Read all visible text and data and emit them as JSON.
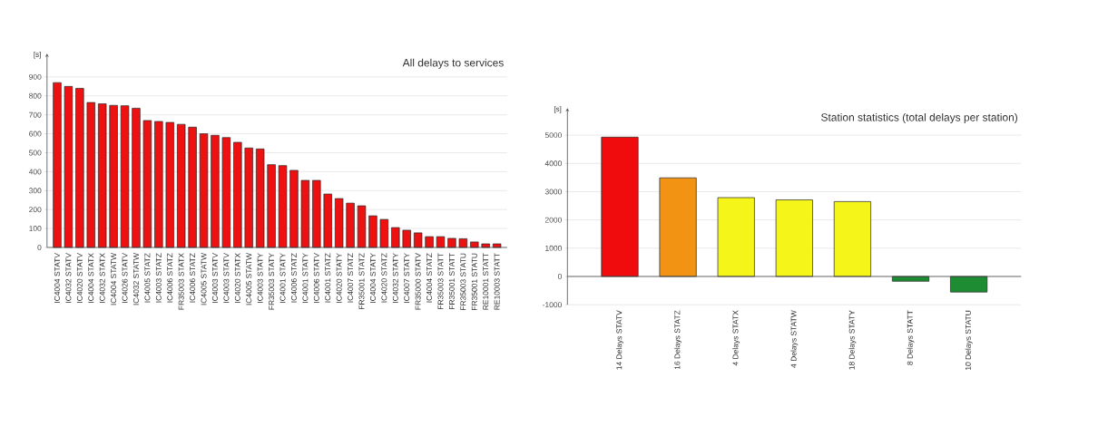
{
  "chart_data": [
    {
      "type": "bar",
      "title": "All delays to services",
      "ylabel": "[s]",
      "categories": [
        "IC4004 STATV",
        "IC4032 STATV",
        "IC4020 STATV",
        "IC4004 STATX",
        "IC4032 STATX",
        "IC4004 STATW",
        "IC4026 STATV",
        "IC4032 STATW",
        "IC4005 STATZ",
        "IC4003 STATZ",
        "IC4006 STATZ",
        "FR35003 STATX",
        "IC4006 STATZ",
        "IC4005 STATW",
        "IC4003 STATV",
        "IC4003 STATV",
        "IC4020 STATX",
        "IC4005 STATW",
        "IC4003 STATY",
        "FR35003 STATY",
        "IC4001 STATY",
        "IC4006 STATZ",
        "IC4001 STATY",
        "IC4006 STATV",
        "IC4001 STATZ",
        "IC4020 STATY",
        "IC4007 STATZ",
        "FR35001 STATZ",
        "IC4004 STATY",
        "IC4020 STATZ",
        "IC4032 STATY",
        "IC4007 STATY",
        "FR35000 STATV",
        "IC4004 STATZ",
        "FR35003 STATT",
        "FR35001 STATT",
        "FR35003 STATU",
        "FR35001 STATU",
        "RE10001 STATT",
        "RE10003 STATT"
      ],
      "values": [
        870,
        850,
        840,
        765,
        758,
        750,
        748,
        735,
        670,
        665,
        660,
        650,
        635,
        600,
        592,
        580,
        555,
        525,
        520,
        437,
        432,
        407,
        354,
        354,
        282,
        258,
        234,
        220,
        167,
        148,
        105,
        91,
        77,
        57,
        57,
        48,
        46,
        29,
        19,
        19
      ],
      "color": "#ee1111",
      "ylim": [
        0,
        1000
      ],
      "yticks": [
        0,
        100,
        200,
        300,
        400,
        500,
        600,
        700,
        800,
        900
      ],
      "grid": "y"
    },
    {
      "type": "bar",
      "title": "Station statistics (total delays per station)",
      "ylabel": "[s]",
      "categories": [
        "14 Delays STATV",
        "16 Delays STATZ",
        "4 Delays STATX",
        "4 Delays STATW",
        "18 Delays STATY",
        "8 Delays STATT",
        "10 Delays STATU"
      ],
      "values": [
        4930,
        3490,
        2790,
        2710,
        2650,
        -170,
        -550
      ],
      "colors": [
        "#f00c0c",
        "#f39314",
        "#f5f519",
        "#f5f519",
        "#f5f519",
        "#1e8c32",
        "#1e8c32"
      ],
      "ylim": [
        -1000,
        5800
      ],
      "yticks": [
        -1000,
        0,
        1000,
        2000,
        3000,
        4000,
        5000
      ],
      "grid": "y"
    }
  ]
}
